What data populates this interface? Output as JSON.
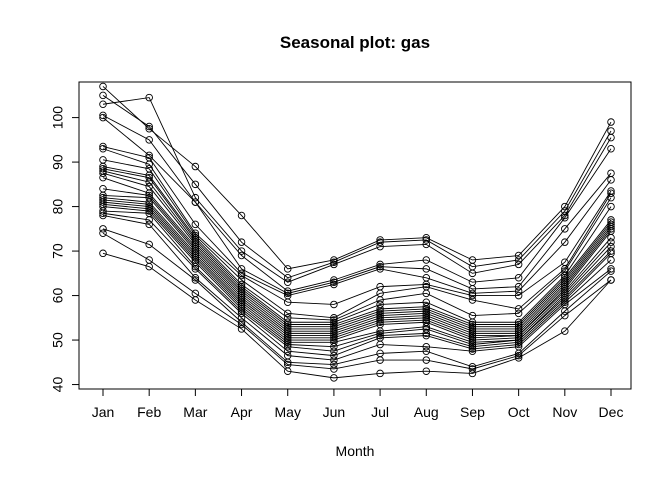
{
  "chart_data": {
    "type": "line",
    "title": "Seasonal plot: gas",
    "xlabel": "Month",
    "ylabel": "",
    "categories": [
      "Jan",
      "Feb",
      "Mar",
      "Apr",
      "May",
      "Jun",
      "Jul",
      "Aug",
      "Sep",
      "Oct",
      "Nov",
      "Dec"
    ],
    "ylim": [
      39,
      108
    ],
    "yticks": [
      40,
      50,
      60,
      70,
      80,
      90,
      100
    ],
    "grid": false,
    "legend": "none",
    "line_color": "#000000",
    "series": [
      {
        "values": [
          107.0,
          97.5,
          89.0,
          78.0,
          66.0,
          68.0,
          72.5,
          73.0,
          68.0,
          69.0,
          80.0,
          99.0
        ]
      },
      {
        "values": [
          105.0,
          98.0,
          85.0,
          72.0,
          64.0,
          67.5,
          72.0,
          72.5,
          66.5,
          68.0,
          79.0,
          97.0
        ]
      },
      {
        "values": [
          103.0,
          104.5,
          82.0,
          70.0,
          63.0,
          67.0,
          71.0,
          71.5,
          65.0,
          67.0,
          78.0,
          95.5
        ]
      },
      {
        "values": [
          100.5,
          95.0,
          81.0,
          69.0,
          61.0,
          63.5,
          67.0,
          68.0,
          63.0,
          64.0,
          77.5,
          93.0
        ]
      },
      {
        "values": [
          100.0,
          91.5,
          81.0,
          66.0,
          60.5,
          63.0,
          66.5,
          66.0,
          61.5,
          62.0,
          75.0,
          87.5
        ]
      },
      {
        "values": [
          93.5,
          91.0,
          76.0,
          65.0,
          60.0,
          62.5,
          66.0,
          64.0,
          60.5,
          61.0,
          72.0,
          86.0
        ]
      },
      {
        "values": [
          93.0,
          89.5,
          74.0,
          64.5,
          58.5,
          58.0,
          62.0,
          62.5,
          60.0,
          60.0,
          67.5,
          83.5
        ]
      },
      {
        "values": [
          90.5,
          88.5,
          73.5,
          63.5,
          56.0,
          55.0,
          60.5,
          62.0,
          59.0,
          57.0,
          66.0,
          83.0
        ]
      },
      {
        "values": [
          89.0,
          87.0,
          73.0,
          62.5,
          55.0,
          54.5,
          59.0,
          60.5,
          55.5,
          56.0,
          65.5,
          82.0
        ]
      },
      {
        "values": [
          88.5,
          86.5,
          72.5,
          62.0,
          54.0,
          54.0,
          58.0,
          58.5,
          54.0,
          54.0,
          64.5,
          80.0
        ]
      },
      {
        "values": [
          88.0,
          85.5,
          72.0,
          61.5,
          53.5,
          53.5,
          57.0,
          57.5,
          53.5,
          53.5,
          64.0,
          77.0
        ]
      },
      {
        "values": [
          87.5,
          84.5,
          71.5,
          61.0,
          53.0,
          53.0,
          56.5,
          57.0,
          53.0,
          53.0,
          63.5,
          76.5
        ]
      },
      {
        "values": [
          86.5,
          83.0,
          71.0,
          60.5,
          52.5,
          52.5,
          56.0,
          56.5,
          52.5,
          52.5,
          63.0,
          76.0
        ]
      },
      {
        "values": [
          84.0,
          82.5,
          70.5,
          60.0,
          52.0,
          52.0,
          55.5,
          56.0,
          52.0,
          52.0,
          62.5,
          75.5
        ]
      },
      {
        "values": [
          82.5,
          82.0,
          70.0,
          59.5,
          51.5,
          51.5,
          55.0,
          55.5,
          51.5,
          51.5,
          62.0,
          75.0
        ]
      },
      {
        "values": [
          82.0,
          81.0,
          69.5,
          59.0,
          51.0,
          51.0,
          54.5,
          55.0,
          51.0,
          51.0,
          61.5,
          74.5
        ]
      },
      {
        "values": [
          81.5,
          80.5,
          69.0,
          58.5,
          50.5,
          50.5,
          54.0,
          54.5,
          50.5,
          51.0,
          61.0,
          73.0
        ]
      },
      {
        "values": [
          81.0,
          80.0,
          68.5,
          58.0,
          50.0,
          50.0,
          53.5,
          54.0,
          50.0,
          50.5,
          60.5,
          72.0
        ]
      },
      {
        "values": [
          80.5,
          79.5,
          68.0,
          57.5,
          49.5,
          49.5,
          52.0,
          53.0,
          49.5,
          50.0,
          60.0,
          71.0
        ]
      },
      {
        "values": [
          80.0,
          79.0,
          67.5,
          57.0,
          49.0,
          48.5,
          51.5,
          52.5,
          49.0,
          50.0,
          59.5,
          70.0
        ]
      },
      {
        "values": [
          79.0,
          78.5,
          66.5,
          56.5,
          48.5,
          47.5,
          51.0,
          51.5,
          48.5,
          49.5,
          59.0,
          69.5
        ]
      },
      {
        "values": [
          78.5,
          77.0,
          66.0,
          56.0,
          47.5,
          46.5,
          50.5,
          51.0,
          48.0,
          49.0,
          58.5,
          68.0
        ]
      },
      {
        "values": [
          78.0,
          76.0,
          64.0,
          55.0,
          46.5,
          45.5,
          49.0,
          48.5,
          47.5,
          48.5,
          58.0,
          66.0
        ]
      },
      {
        "values": [
          75.0,
          71.5,
          63.5,
          54.0,
          45.0,
          44.5,
          47.0,
          47.5,
          44.0,
          47.0,
          56.5,
          65.5
        ]
      },
      {
        "values": [
          74.0,
          68.0,
          60.5,
          53.5,
          44.5,
          43.5,
          45.5,
          45.5,
          43.5,
          46.5,
          55.5,
          63.5
        ]
      },
      {
        "values": [
          69.5,
          66.5,
          59.0,
          52.5,
          43.0,
          41.5,
          42.5,
          43.0,
          42.5,
          46.0,
          52.0,
          63.5
        ]
      }
    ]
  }
}
